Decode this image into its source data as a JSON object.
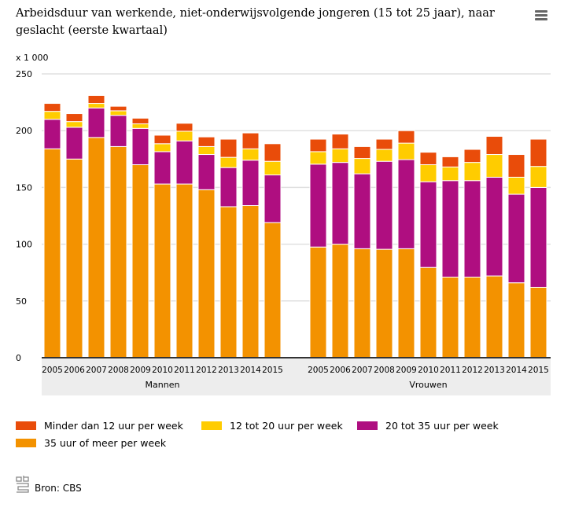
{
  "header": {
    "title": "Arbeidsduur van werkende, niet-onderwijsvolgende jongeren (15 tot 25 jaar), naar geslacht (eerste kwartaal)",
    "menu_icon": "hamburger-menu-icon"
  },
  "footer": {
    "source_label": "Bron: CBS",
    "logo_icon": "cbs-logo-icon"
  },
  "chart_data": {
    "type": "bar",
    "stacked": true,
    "title": "Arbeidsduur van werkende, niet-onderwijsvolgende jongeren (15 tot 25 jaar), naar geslacht (eerste kwartaal)",
    "unit_label": "x 1 000",
    "xlabel": "",
    "ylabel": "x 1 000",
    "ylim": [
      0,
      250
    ],
    "yticks": [
      0,
      50,
      100,
      150,
      200,
      250
    ],
    "grid": true,
    "legend_position": "bottom",
    "groups": [
      {
        "name": "Mannen",
        "categories": [
          "2005",
          "2006",
          "2007",
          "2008",
          "2009",
          "2010",
          "2011",
          "2012",
          "2013",
          "2014",
          "2015"
        ]
      },
      {
        "name": "Vrouwen",
        "categories": [
          "2005",
          "2006",
          "2007",
          "2008",
          "2009",
          "2010",
          "2011",
          "2012",
          "2013",
          "2014",
          "2015"
        ]
      }
    ],
    "series": [
      {
        "name": "35 uur of meer per week",
        "color": "#f39200",
        "values": {
          "Mannen": [
            184,
            175,
            194,
            186,
            170,
            153,
            153,
            148,
            133,
            134,
            119
          ],
          "Vrouwen": [
            97.5,
            100,
            96,
            95.5,
            96,
            79.5,
            71,
            71,
            72,
            66,
            62
          ]
        }
      },
      {
        "name": "20 tot 35 uur per week",
        "color": "#af0e80",
        "values": {
          "Mannen": [
            26,
            28,
            26,
            27.5,
            32,
            28.5,
            38,
            31,
            34.5,
            40,
            42
          ],
          "Vrouwen": [
            73,
            72,
            66,
            77.5,
            78.5,
            75.5,
            85,
            85,
            87,
            78,
            88
          ]
        }
      },
      {
        "name": "12 tot 20 uur per week",
        "color": "#ffcc00",
        "values": {
          "Mannen": [
            7,
            5,
            4,
            4,
            4,
            7,
            8.5,
            7,
            9,
            10,
            12
          ],
          "Vrouwen": [
            11,
            12,
            13.5,
            10.5,
            14.5,
            15,
            12,
            16,
            20,
            15,
            18.5
          ]
        }
      },
      {
        "name": "Minder dan 12 uur per week",
        "color": "#e94c0a",
        "values": {
          "Mannen": [
            7,
            7,
            7,
            4,
            5,
            7.5,
            7,
            8.5,
            16,
            14,
            15.5
          ],
          "Vrouwen": [
            11,
            13,
            10.5,
            9,
            11,
            11,
            9,
            11.5,
            16,
            20,
            24
          ]
        }
      }
    ],
    "legend": [
      {
        "label": "Minder dan 12 uur per week",
        "color": "#e94c0a"
      },
      {
        "label": "12 tot 20 uur per week",
        "color": "#ffcc00"
      },
      {
        "label": "20 tot 35 uur per week",
        "color": "#af0e80"
      },
      {
        "label": "35 uur of meer per week",
        "color": "#f39200"
      }
    ]
  }
}
